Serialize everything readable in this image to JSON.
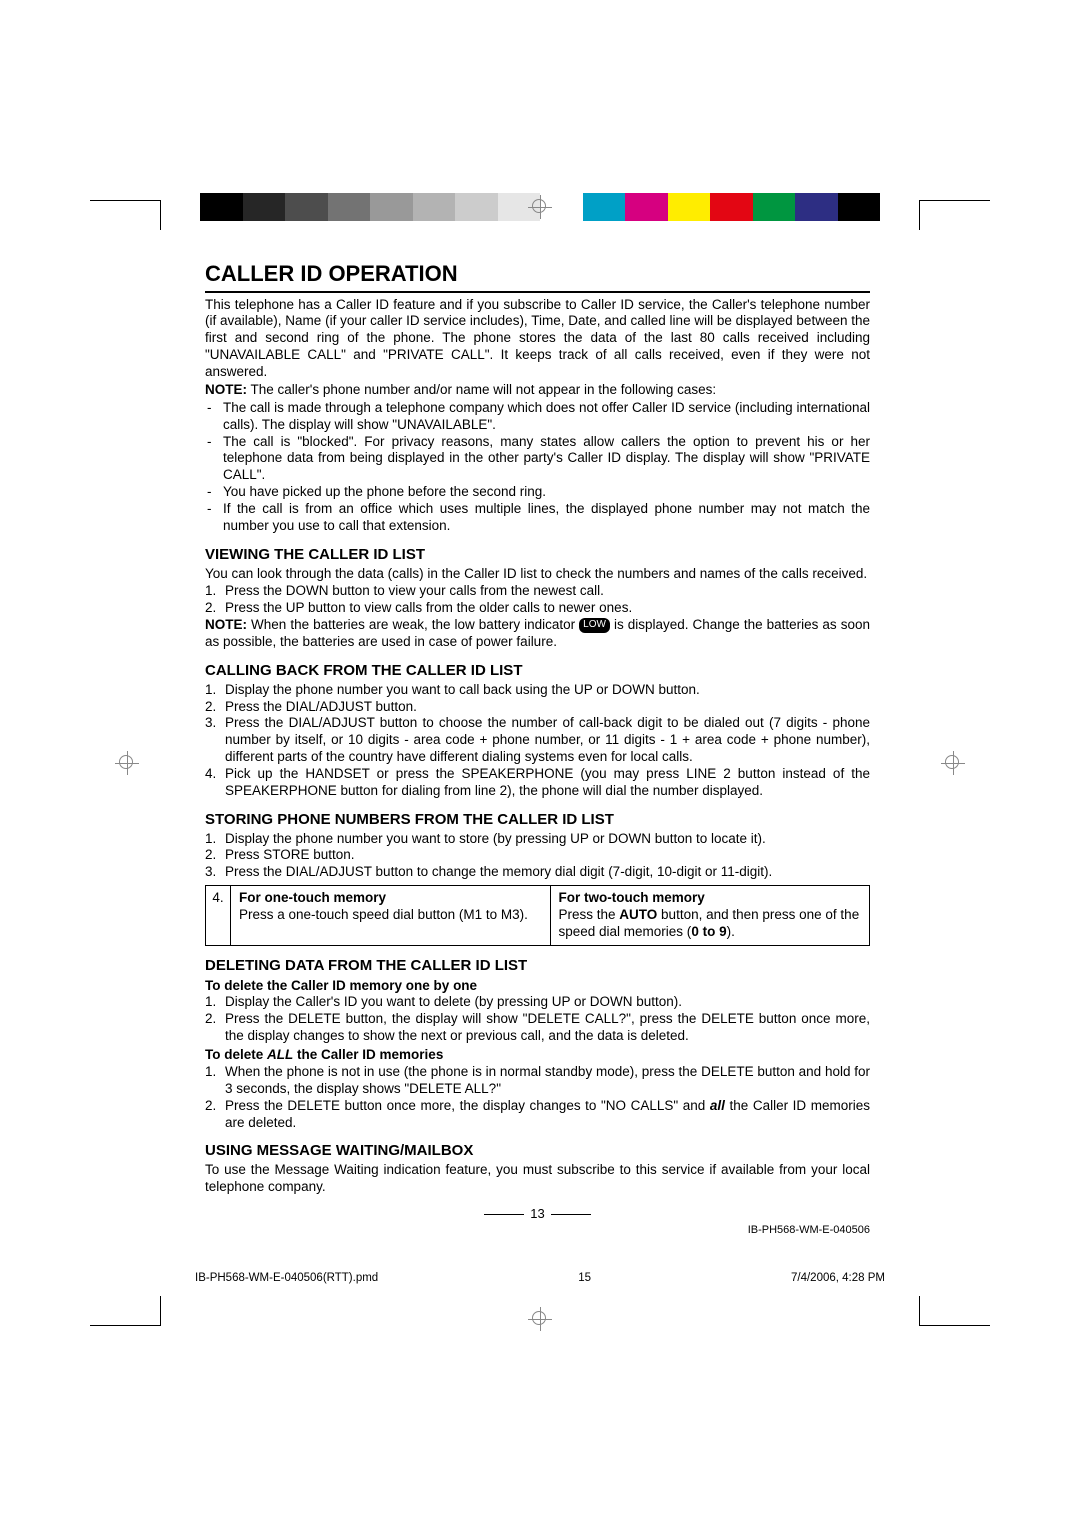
{
  "colorbar": [
    "#000000",
    "#262626",
    "#4d4d4d",
    "#737373",
    "#999999",
    "#b3b3b3",
    "#cccccc",
    "#e6e6e6",
    "#ffffff",
    "#00a0c6",
    "#d60080",
    "#ffed00",
    "#e30613",
    "#009640",
    "#2d2e83",
    "#000000"
  ],
  "title": "CALLER ID OPERATION",
  "intro": "This telephone has a Caller ID feature and if you subscribe to Caller ID service, the Caller's telephone number (if available), Name (if your caller ID service includes), Time, Date, and called line will be displayed between the first and second ring of the phone. The phone stores the data of the last 80 calls received including \"UNAVAILABLE CALL\" and \"PRIVATE CALL\". It keeps track of all calls received, even if they were not answered.",
  "note1_label": "NOTE:",
  "note1": " The caller's phone number and/or name will not appear in the following cases:",
  "bullets": [
    "The call is made through a telephone company which does not offer Caller ID service (including international calls). The display will show \"UNAVAILABLE\".",
    "The call is \"blocked\". For privacy reasons, many states allow callers the option to prevent his or her telephone data from being displayed in the other party's Caller ID display. The display will show \"PRIVATE CALL\".",
    "You have picked up the phone before the second ring.",
    "If the call is from an office which uses multiple lines, the displayed phone number may not match the number you use to call that extension."
  ],
  "sec2_title": "VIEWING THE CALLER ID LIST",
  "sec2_p": "You can look through the data (calls) in the Caller ID list to check the numbers and names of the calls received.",
  "sec2_items": [
    "Press the DOWN button to view your calls from the newest call.",
    "Press the UP button to view calls from the older calls to newer ones."
  ],
  "sec2_note_a": "When the batteries are weak, the low battery indicator ",
  "sec2_note_b": " is displayed. Change the batteries as soon as possible, the batteries are used in case of power failure.",
  "low_label": "LOW",
  "sec3_title": "CALLING BACK FROM THE CALLER ID LIST",
  "sec3_items": [
    "Display the phone number you want to call back using the UP or DOWN button.",
    "Press the DIAL/ADJUST button.",
    "Press the DIAL/ADJUST button to choose the number of call-back digit to be dialed out (7 digits - phone number by itself, or 10 digits - area code + phone number, or 11 digits - 1 + area code + phone number), different parts of the country have different dialing systems even for local calls.",
    "Pick up the HANDSET or press the SPEAKERPHONE (you may press LINE 2 button instead of the SPEAKERPHONE button for dialing from line 2), the phone will dial the number displayed."
  ],
  "sec4_title": "STORING PHONE NUMBERS FROM THE CALLER ID LIST",
  "sec4_items": [
    "Display the phone number you want to store (by pressing UP or DOWN button to locate it).",
    "Press STORE button.",
    "Press the DIAL/ADJUST button to change the memory dial digit (7-digit, 10-digit or 11-digit)."
  ],
  "table": {
    "num": "4.",
    "left_h": "For one-touch memory",
    "left_b": "Press a one-touch speed dial button (M1 to M3).",
    "right_h": "For two-touch memory",
    "right_b1": "Press the ",
    "right_auto": "AUTO",
    "right_b2": " button, and then press one of the speed dial memories (",
    "right_09": "0 to 9",
    "right_b3": ")."
  },
  "sec5_title": "DELETING DATA FROM THE CALLER ID LIST",
  "sec5_sub1": "To delete the Caller ID memory one by one",
  "sec5_a": [
    "Display the Caller's ID you want to delete (by pressing UP or DOWN button).",
    "Press the DELETE button, the display will show \"DELETE CALL?\", press the DELETE button once more, the display changes to show the next or previous call, and the data is deleted."
  ],
  "sec5_sub2_a": "To delete ",
  "sec5_sub2_all": "ALL",
  "sec5_sub2_b": " the Caller ID memories",
  "sec5_b": [
    "When the phone is not in use (the phone is in normal standby mode), press the DELETE button and hold for 3 seconds, the display shows \"DELETE ALL?\""
  ],
  "sec5_b2_a": "Press the DELETE button once more, the display changes to \"NO CALLS\" and ",
  "sec5_b2_all": "all",
  "sec5_b2_b": " the Caller ID memories are deleted.",
  "sec6_title": "USING MESSAGE WAITING/MAILBOX",
  "sec6_p": "To use the Message Waiting indication feature, you must subscribe to this service if available from your local telephone company.",
  "page_num": "13",
  "doc_id": "IB-PH568-WM-E-040506",
  "footer": {
    "file": "IB-PH568-WM-E-040506(RTT).pmd",
    "page": "15",
    "date": "7/4/2006, 4:28 PM"
  }
}
